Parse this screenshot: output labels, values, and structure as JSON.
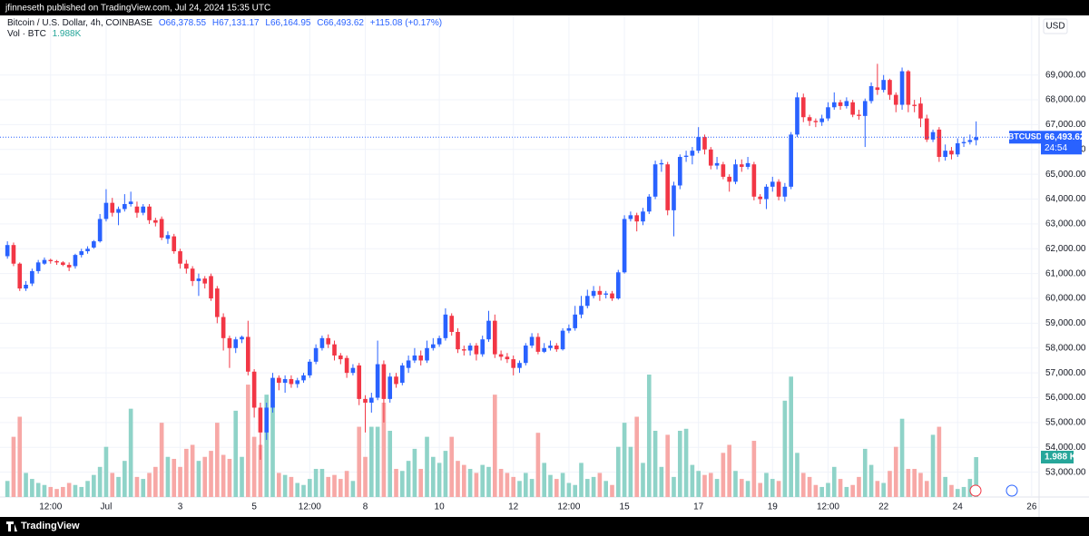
{
  "chart_data": {
    "type": "candlestick",
    "published": "jfinneseth published on TradingView.com, Jul 24, 2024 15:35 UTC",
    "legend": {
      "symbol": "Bitcoin / U.S. Dollar, 4h, COINBASE",
      "ohlc": [
        "O66,378.55",
        "H67,131.17",
        "L66,164.95",
        "C66,493.62"
      ],
      "change": "+115.08 (+0.17%)",
      "volume_name": "Vol · BTC",
      "volume_value": "1.988K"
    },
    "currency": "USD",
    "symbol_tag": "BTCUSD",
    "last_price_label": "66,493.62",
    "countdown": "24:54",
    "volume_label": "1.988 K",
    "brand": "TradingView",
    "up_color": "#2962ff",
    "down_color": "#f23645",
    "volume_up_color": "#8fd3c8",
    "volume_down_color": "#f7a8a6",
    "grid": true,
    "xlim": [
      -1.2,
      167.2
    ],
    "xticks": [
      {
        "value": 7,
        "label": "12:00"
      },
      {
        "value": 16,
        "label": "Jul"
      },
      {
        "value": 28,
        "label": "3"
      },
      {
        "value": 40,
        "label": "5"
      },
      {
        "value": 49,
        "label": "12:00"
      },
      {
        "value": 58,
        "label": "8"
      },
      {
        "value": 70,
        "label": "10"
      },
      {
        "value": 82,
        "label": "12"
      },
      {
        "value": 91,
        "label": "12:00"
      },
      {
        "value": 100,
        "label": "15"
      },
      {
        "value": 112,
        "label": "17"
      },
      {
        "value": 124,
        "label": "19"
      },
      {
        "value": 133,
        "label": "12:00"
      },
      {
        "value": 142,
        "label": "22"
      },
      {
        "value": 154,
        "label": "24"
      },
      {
        "value": 166,
        "label": "26"
      }
    ],
    "ylim": [
      52000,
      71400
    ],
    "yticks": [
      {
        "value": 53000,
        "label": "53,000.00"
      },
      {
        "value": 54000,
        "label": "54,000.00"
      },
      {
        "value": 55000,
        "label": "55,000.00"
      },
      {
        "value": 56000,
        "label": "56,000.00"
      },
      {
        "value": 57000,
        "label": "57,000.00"
      },
      {
        "value": 58000,
        "label": "58,000.00"
      },
      {
        "value": 59000,
        "label": "59,000.00"
      },
      {
        "value": 60000,
        "label": "60,000.00"
      },
      {
        "value": 61000,
        "label": "61,000.00"
      },
      {
        "value": 62000,
        "label": "62,000.00"
      },
      {
        "value": 63000,
        "label": "63,000.00"
      },
      {
        "value": 64000,
        "label": "64,000.00"
      },
      {
        "value": 65000,
        "label": "65,000.00"
      },
      {
        "value": 66000,
        "label": "66,000.00"
      },
      {
        "value": 67000,
        "label": "67,000.00"
      },
      {
        "value": 68000,
        "label": "68,000.00"
      },
      {
        "value": 69000,
        "label": "69,000.00"
      }
    ],
    "volume_ylim": [
      0,
      24
    ],
    "open": [
      61700,
      62150,
      61400,
      60400,
      60600,
      61100,
      61400,
      61550,
      61500,
      61450,
      61350,
      61300,
      61750,
      61900,
      62050,
      62300,
      63200,
      63850,
      63450,
      63600,
      63800,
      63700,
      63450,
      63700,
      63150,
      63200,
      62400,
      62500,
      61900,
      61400,
      61200,
      60700,
      60800,
      60900,
      60400,
      59250,
      58400,
      58000,
      58350,
      58450,
      57050,
      55600,
      54600,
      55600,
      56800,
      56600,
      56750,
      56550,
      56700,
      56900,
      57450,
      58000,
      58400,
      58150,
      57700,
      57600,
      57000,
      57300,
      55950,
      55800,
      56000,
      57350,
      55950,
      56850,
      56600,
      57200,
      57500,
      57700,
      57500,
      58000,
      58150,
      58400,
      59300,
      58650,
      57950,
      57900,
      58100,
      57750,
      58350,
      59100,
      57750,
      57650,
      57550,
      57200,
      57400,
      58100,
      58450,
      57850,
      58000,
      58100,
      57950,
      58700,
      58800,
      59350,
      59700,
      60100,
      60300,
      60150,
      60200,
      60000,
      61050,
      63200,
      63350,
      63100,
      63500,
      64100,
      65400,
      65400,
      63550,
      64550,
      65700,
      65750,
      65950,
      66500,
      66000,
      65350,
      65400,
      64900,
      64700,
      65400,
      65300,
      65400,
      64100,
      64000,
      64500,
      64700,
      64100,
      64500,
      66600,
      68100,
      67300,
      67150,
      67100,
      67250,
      67700,
      67900,
      67750,
      67900,
      67400,
      67350,
      67950,
      68500,
      68400,
      68800,
      68200,
      67800,
      69150,
      67800,
      67850,
      67250,
      66400,
      66800,
      65700,
      65950,
      65800,
      66250,
      66300,
      66378.55
    ],
    "high": [
      62300,
      62250,
      61450,
      60700,
      61200,
      61550,
      61650,
      61600,
      61550,
      61500,
      61450,
      61800,
      62000,
      62100,
      62350,
      63400,
      64400,
      64050,
      63700,
      64200,
      64300,
      63900,
      63800,
      63800,
      63250,
      63300,
      62700,
      62600,
      62000,
      61550,
      61300,
      61000,
      60900,
      61000,
      60500,
      59400,
      58500,
      58450,
      58500,
      59100,
      57150,
      55800,
      55800,
      57000,
      56900,
      56900,
      56900,
      56800,
      57000,
      57550,
      58150,
      58500,
      58550,
      58300,
      57800,
      57700,
      57350,
      57400,
      56100,
      56200,
      58300,
      57500,
      57000,
      57000,
      57400,
      57700,
      58000,
      57900,
      58300,
      58400,
      58500,
      59600,
      59400,
      58800,
      58100,
      58200,
      58200,
      58500,
      59500,
      59350,
      57900,
      57800,
      57700,
      57500,
      58200,
      58600,
      58600,
      58200,
      58300,
      58200,
      58800,
      58950,
      59700,
      60100,
      60350,
      60500,
      60500,
      60300,
      60300,
      61150,
      63350,
      63500,
      63450,
      63650,
      64200,
      65550,
      65600,
      65500,
      64700,
      65800,
      65950,
      66100,
      66900,
      66600,
      66100,
      65700,
      65500,
      65000,
      65600,
      65600,
      65700,
      65500,
      64200,
      64600,
      64900,
      64800,
      64650,
      66700,
      68300,
      68250,
      67400,
      67250,
      67400,
      67900,
      68300,
      68000,
      68100,
      68000,
      67600,
      68050,
      68700,
      69450,
      69000,
      68850,
      68300,
      69300,
      69200,
      68000,
      68100,
      67400,
      66800,
      66900,
      66200,
      66100,
      66450,
      66500,
      66600,
      67131.17
    ],
    "low": [
      61600,
      61300,
      60300,
      60300,
      60500,
      61000,
      61350,
      61400,
      61350,
      61300,
      61100,
      61200,
      61650,
      61800,
      62000,
      62250,
      63100,
      63300,
      62950,
      63500,
      63700,
      63250,
      63350,
      63000,
      62900,
      62350,
      62200,
      61800,
      61200,
      61000,
      60500,
      60100,
      60400,
      59900,
      59000,
      57900,
      57200,
      57800,
      58200,
      56900,
      55200,
      53500,
      54300,
      55400,
      56300,
      56200,
      56400,
      56400,
      56600,
      56800,
      57350,
      57900,
      58000,
      57500,
      57350,
      56800,
      56900,
      55700,
      54600,
      55400,
      55900,
      55000,
      55800,
      56400,
      56500,
      57000,
      57400,
      57300,
      57400,
      57900,
      58050,
      58300,
      58500,
      57800,
      57700,
      57700,
      57500,
      57650,
      58250,
      57600,
      57500,
      57400,
      56900,
      57000,
      57300,
      58000,
      57750,
      57800,
      57900,
      57850,
      57900,
      58600,
      58700,
      59200,
      59600,
      60000,
      59900,
      60000,
      59900,
      59950,
      61000,
      63100,
      62700,
      62950,
      63400,
      64000,
      65100,
      63350,
      62500,
      64400,
      65500,
      65400,
      65850,
      65800,
      65200,
      65200,
      64800,
      64300,
      64600,
      65100,
      65200,
      63950,
      63800,
      63600,
      64300,
      63950,
      63900,
      64400,
      66500,
      67100,
      66950,
      66900,
      66950,
      67150,
      67600,
      67600,
      67650,
      67300,
      67200,
      66100,
      67850,
      68200,
      68300,
      68000,
      67500,
      67600,
      67500,
      67500,
      66900,
      66300,
      66300,
      65500,
      65550,
      65600,
      65700,
      66100,
      66200,
      66164.95
    ],
    "close": [
      62150,
      61400,
      60400,
      60550,
      61100,
      61450,
      61550,
      61500,
      61450,
      61350,
      61250,
      61750,
      61900,
      62000,
      62300,
      63200,
      63850,
      63450,
      63600,
      63800,
      63900,
      63450,
      63700,
      63150,
      63050,
      62450,
      62550,
      61900,
      61400,
      61200,
      60700,
      60800,
      60600,
      60000,
      59250,
      58400,
      58000,
      58350,
      58450,
      57050,
      55600,
      54600,
      55600,
      56800,
      56600,
      56750,
      56550,
      56700,
      56900,
      57450,
      58000,
      58400,
      58150,
      57700,
      57550,
      57000,
      57200,
      55950,
      55800,
      56000,
      57350,
      55950,
      56850,
      56550,
      57300,
      57500,
      57700,
      57500,
      58000,
      58150,
      58400,
      59350,
      58650,
      57950,
      57900,
      58100,
      57750,
      58350,
      59100,
      57750,
      57650,
      57550,
      57200,
      57400,
      58100,
      58450,
      57850,
      58000,
      58100,
      57950,
      58700,
      58800,
      59350,
      59700,
      60100,
      60300,
      60150,
      60200,
      60000,
      61050,
      63200,
      63350,
      63100,
      63500,
      64100,
      65400,
      65450,
      63550,
      64550,
      65700,
      65750,
      65950,
      66500,
      66000,
      65350,
      65450,
      64900,
      64700,
      65400,
      65300,
      65450,
      64100,
      64000,
      64500,
      64700,
      64100,
      64500,
      66600,
      68100,
      67300,
      67150,
      67100,
      67250,
      67700,
      67900,
      67750,
      67950,
      67400,
      67350,
      67950,
      68550,
      68400,
      68800,
      68200,
      67800,
      69150,
      67800,
      67750,
      67250,
      66400,
      66700,
      65700,
      65950,
      65800,
      66250,
      66300,
      66380,
      66493.62
    ],
    "volume": [
      0.8,
      3.0,
      4.0,
      1.2,
      0.9,
      0.7,
      0.6,
      0.5,
      0.4,
      0.5,
      0.7,
      0.6,
      0.5,
      0.8,
      1.1,
      1.5,
      2.5,
      1.2,
      1.0,
      1.8,
      4.4,
      1.0,
      0.9,
      1.2,
      1.5,
      3.7,
      2.0,
      1.9,
      1.5,
      2.4,
      2.6,
      1.8,
      2.0,
      2.3,
      3.7,
      2.1,
      1.9,
      4.3,
      2.0,
      5.6,
      3.0,
      2.6,
      5.1,
      5.9,
      1.2,
      1.1,
      1.0,
      0.7,
      0.6,
      0.9,
      1.4,
      1.4,
      1.0,
      1.1,
      0.9,
      1.3,
      0.8,
      3.5,
      2.0,
      3.5,
      3.5,
      4.7,
      3.3,
      1.4,
      1.3,
      1.8,
      2.4,
      1.4,
      3.0,
      2.0,
      1.7,
      2.3,
      3.0,
      1.8,
      1.6,
      1.4,
      1.2,
      1.6,
      1.5,
      5.1,
      1.4,
      1.2,
      1.0,
      0.8,
      1.2,
      0.9,
      3.2,
      1.7,
      1.1,
      0.9,
      1.2,
      0.7,
      0.6,
      1.7,
      0.9,
      1.0,
      1.2,
      0.8,
      0.6,
      2.5,
      3.7,
      2.5,
      4.0,
      1.7,
      6.1,
      3.3,
      1.5,
      3.1,
      1.0,
      3.3,
      3.4,
      1.6,
      1.3,
      1.1,
      1.2,
      0.9,
      2.2,
      2.6,
      1.3,
      0.9,
      0.8,
      2.8,
      0.7,
      1.2,
      0.9,
      0.8,
      4.8,
      6.0,
      2.2,
      1.2,
      1.0,
      0.6,
      0.5,
      0.7,
      1.5,
      0.9,
      0.5,
      0.6,
      1.0,
      2.4,
      1.6,
      0.8,
      0.7,
      1.3,
      2.5,
      3.9,
      1.4,
      1.4,
      1.2,
      0.8,
      3.1,
      3.5,
      1.0,
      0.6,
      0.4,
      0.5,
      0.9,
      1.988
    ]
  }
}
